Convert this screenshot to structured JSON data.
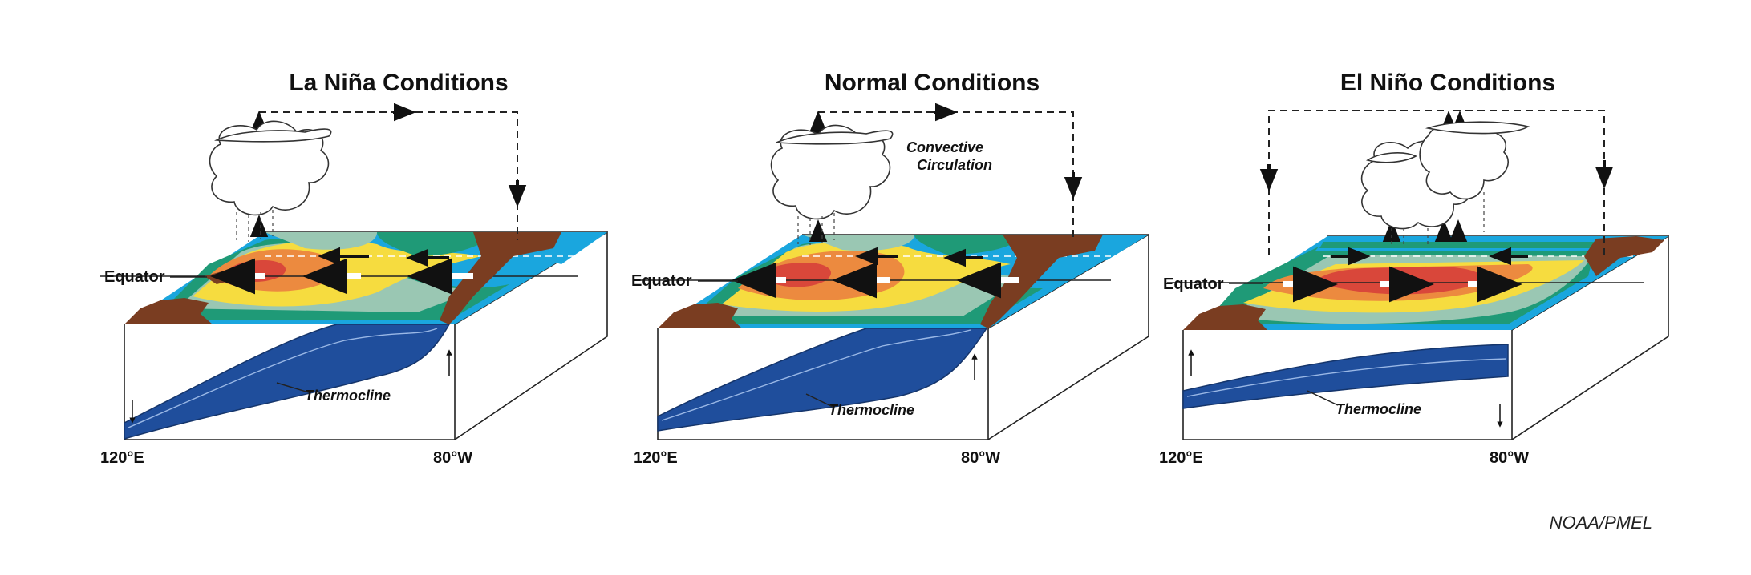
{
  "panels": [
    {
      "title": "La Niña Conditions",
      "equator": "Equator",
      "thermocline": "Thermocline",
      "lon_left": "120°E",
      "lon_right": "80°W"
    },
    {
      "title": "Normal Conditions",
      "equator": "Equator",
      "thermocline": "Thermocline",
      "lon_left": "120°E",
      "lon_right": "80°W",
      "circulation_line1": "Convective",
      "circulation_line2": "Circulation"
    },
    {
      "title": "El Niño Conditions",
      "equator": "Equator",
      "thermocline": "Thermocline",
      "lon_left": "120°E",
      "lon_right": "80°W"
    }
  ],
  "credit": "NOAA/PMEL",
  "colors": {
    "warm_core": "#d9473a",
    "warm": "#ec8a3f",
    "mid": "#f6dc3f",
    "cool": "#9ac7b3",
    "cooler": "#1f9a77",
    "cold": "#1aa6de",
    "thermocline": "#1f4e9c",
    "land": "#7a3d21"
  }
}
